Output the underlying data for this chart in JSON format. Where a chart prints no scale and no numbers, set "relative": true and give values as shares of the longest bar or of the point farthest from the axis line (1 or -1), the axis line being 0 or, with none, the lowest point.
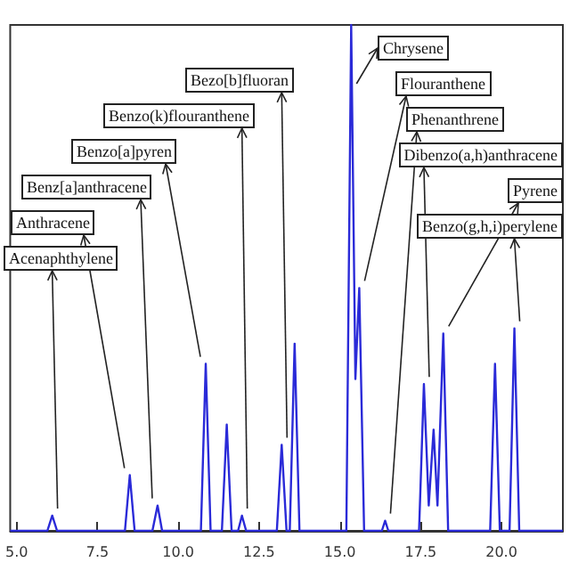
{
  "chart_data": {
    "type": "line",
    "relative": true,
    "color": "#2a2ad8",
    "tick_labels": "x",
    "grid": false,
    "marker": "none",
    "line_style": "solid",
    "xlim": [
      4.8,
      21.9
    ],
    "xticks": [
      {
        "value": 5,
        "label": "5.0"
      },
      {
        "value": 7.5,
        "label": "7.5"
      },
      {
        "value": 10,
        "label": "10.0"
      },
      {
        "value": 12.5,
        "label": "12.5"
      },
      {
        "value": 15,
        "label": "15.0"
      },
      {
        "value": 17.5,
        "label": "17.5"
      },
      {
        "value": 20,
        "label": "20.0"
      }
    ],
    "x": [
      4.8,
      5.95,
      6.1,
      6.25,
      8.35,
      8.5,
      8.65,
      9.2,
      9.36,
      9.5,
      10.7,
      10.85,
      11.0,
      11.35,
      11.5,
      11.65,
      11.85,
      11.97,
      12.1,
      13.05,
      13.2,
      13.35,
      13.45,
      13.6,
      13.75,
      15.2,
      15.35,
      15.48,
      15.6,
      15.75,
      16.3,
      16.4,
      16.5,
      17.45,
      17.6,
      17.75,
      17.9,
      18.02,
      18.2,
      18.35,
      19.65,
      19.8,
      19.95,
      20.25,
      20.4,
      20.55,
      21.9
    ],
    "values": [
      0,
      0,
      0.03,
      0,
      0,
      0.11,
      0,
      0,
      0.05,
      0,
      0,
      0.33,
      0,
      0,
      0.21,
      0,
      0,
      0.03,
      0,
      0,
      0.17,
      0,
      0,
      0.37,
      0,
      0,
      1,
      0.3,
      0.48,
      0,
      0,
      0.02,
      0,
      0,
      0.29,
      0.05,
      0.2,
      0.05,
      0.39,
      0,
      0,
      0.33,
      0,
      0,
      0.4,
      0,
      0
    ],
    "annotations": [
      {
        "text": "Acenaphthylene",
        "x": 6.1,
        "y": 0.03
      },
      {
        "text": "Anthracene",
        "x": 8.5,
        "y": 0.11
      },
      {
        "text": "Benz[a]anthracene",
        "x": 9.36,
        "y": 0.05
      },
      {
        "text": "Benzo[a]pyren",
        "x": 10.85,
        "y": 0.33
      },
      {
        "text": "Benzo(k)flouranthene",
        "x": 11.97,
        "y": 0.03
      },
      {
        "text": "Bezo[b]fluoran",
        "x": 13.2,
        "y": 0.17
      },
      {
        "text": "Chrysene",
        "x": 15.35,
        "y": 1
      },
      {
        "text": "Flouranthene",
        "x": 15.6,
        "y": 0.48
      },
      {
        "text": "Phenanthrene",
        "x": 16.4,
        "y": 0.02
      },
      {
        "text": "Dibenzo(a,h)anthracene",
        "x": 17.6,
        "y": 0.29
      },
      {
        "text": "Pyrene",
        "x": 18.2,
        "y": 0.39
      },
      {
        "text": "Benzo(g,h,i)perylene",
        "x": 20.4,
        "y": 0.4
      }
    ]
  }
}
